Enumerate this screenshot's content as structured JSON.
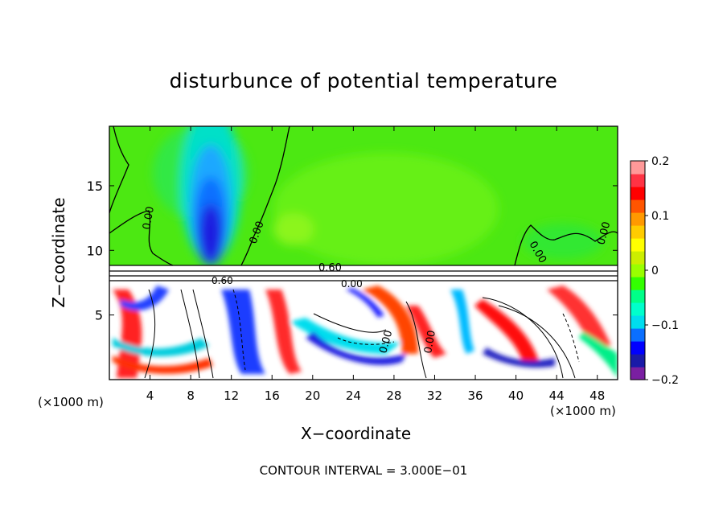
{
  "chart_data": {
    "type": "heatmap",
    "title": "disturbunce of potential temperature",
    "xlabel": "X−coordinate",
    "ylabel": "Z−coordinate",
    "x_unit": "(×1000 m)",
    "x_unit_right": "(×1000 m)",
    "x_ticks": [
      "4",
      "8",
      "12",
      "16",
      "20",
      "24",
      "28",
      "32",
      "36",
      "40",
      "44",
      "48"
    ],
    "y_ticks": [
      "5",
      "10",
      "15"
    ],
    "xlim": [
      0,
      50
    ],
    "ylim": [
      0,
      19.6
    ],
    "colorbar": {
      "range": [
        -0.2,
        0.2
      ],
      "tick_labels": [
        "0.2",
        "0.1",
        "0",
        "−0.1",
        "−0.2"
      ],
      "colors": [
        "#7a1fa2",
        "#1a1aa8",
        "#0000ff",
        "#0a6fff",
        "#00ddee",
        "#00ffcc",
        "#00ff88",
        "#33ff00",
        "#99ff00",
        "#ccee00",
        "#ffff00",
        "#ffcc00",
        "#ff9900",
        "#ff5500",
        "#ff0000",
        "#ff3344",
        "#ff9999"
      ]
    },
    "contour_labels": [
      "0.00",
      "0.00",
      "0.60",
      "0.60",
      "0.00",
      "0.00",
      "0.00",
      "0.00",
      "0.00"
    ],
    "contour_interval": "CONTOUR INTERVAL = 3.000E−01"
  },
  "colors": {
    "background_green": "#55ee11",
    "cool_blue": "#0000ff",
    "warm_red": "#ff0000"
  }
}
